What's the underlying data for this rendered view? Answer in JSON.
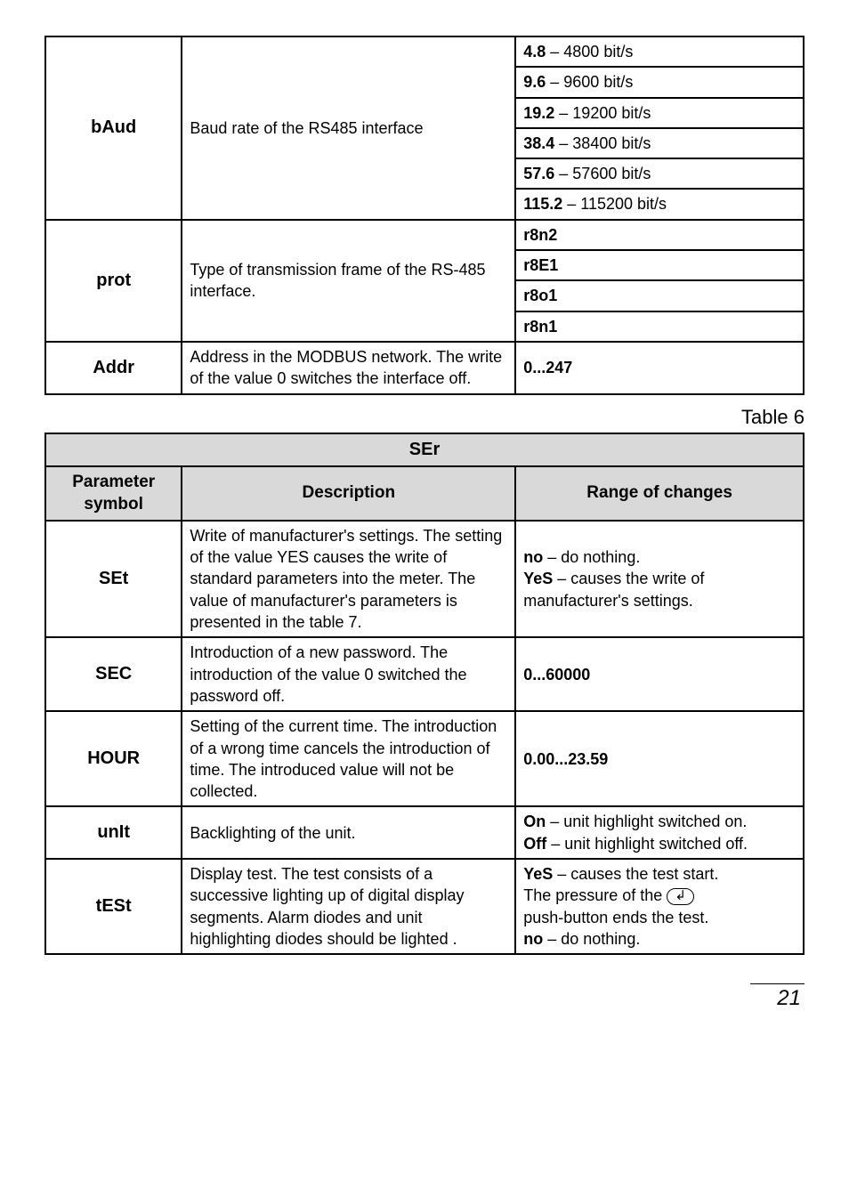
{
  "table1": {
    "rows": [
      {
        "param": "bAud",
        "desc": "Baud rate of the  RS485 interface",
        "ranges": [
          {
            "b": "4.8",
            "rest": " – 4800 bit/s"
          },
          {
            "b": "9.6",
            "rest": " – 9600 bit/s"
          },
          {
            "b": "19.2",
            "rest": " – 19200 bit/s"
          },
          {
            "b": "38.4",
            "rest": " – 38400 bit/s"
          },
          {
            "b": "57.6",
            "rest": " – 57600 bit/s"
          },
          {
            "b": "115.2",
            "rest": " – 115200 bit/s"
          }
        ]
      },
      {
        "param": "prot",
        "desc": "Type of transmission frame of the RS-485 interface.",
        "ranges": [
          {
            "b": "r8n2",
            "rest": ""
          },
          {
            "b": "r8E1",
            "rest": ""
          },
          {
            "b": "r8o1",
            "rest": ""
          },
          {
            "b": "r8n1",
            "rest": ""
          }
        ]
      },
      {
        "param": "Addr",
        "desc": "Address in the  MODBUS network. The write of the value 0 switches the interface off.",
        "ranges_plain": "0...247"
      }
    ]
  },
  "caption2": "Table 6",
  "table2": {
    "title": "SEr",
    "col_param": "Parameter symbol",
    "col_desc": "Description",
    "col_range": "Range of changes",
    "rows": [
      {
        "param": "SEt",
        "desc": "Write of manufacturer's settings. The setting of the value YES causes the write of standard parameters into the meter. The value of manufacturer's parameters  is presented in the table 7.",
        "range_html": "<b>no</b> – do nothing.<br><b>YeS</b> –  causes the write of manufacturer's settings."
      },
      {
        "param": "SEC",
        "desc": "Introduction of a new password. The introduction of the value 0 switched the password off.",
        "range_html": "<b>0...60000</b>"
      },
      {
        "param": "HOUR",
        "desc": "Setting of the current time. The introduction of a wrong time cancels the introduction of time. The introduced value will not be collected.",
        "range_html": "<b>0.00...23.59</b>"
      },
      {
        "param": "unIt",
        "desc": "Backlighting of the unit.",
        "range_html": "<b>On</b> – unit highlight switched on.<br><b>Off</b> – unit highlight switched off."
      },
      {
        "param": "tESt",
        "desc": "Display test. The test consists of a successive lighting up of digital display segments. Alarm diodes and  unit highlighting diodes should be lighted .",
        "range_html": "<b>YeS</b> –  causes the test start.<br>The pressure of the <span class=\"enter-icon\">&#8626;</span><br>push-button ends the test.<br><b>no</b> – do nothing."
      }
    ]
  },
  "page_number": "21"
}
